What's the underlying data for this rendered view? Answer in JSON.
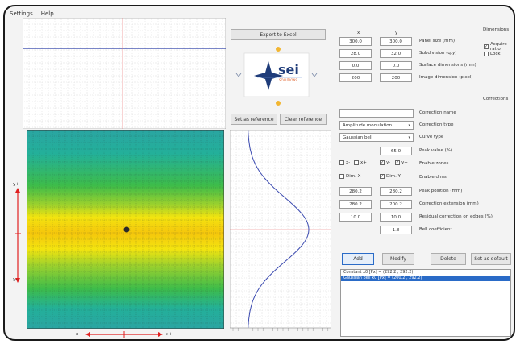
{
  "menu": {
    "settings": "Settings",
    "help": "Help"
  },
  "buttons": {
    "export_to_excel": "Export to Excel",
    "set_as_reference": "Set as reference",
    "clear_reference": "Clear reference",
    "add": "Add",
    "modify": "Modify",
    "delete": "Delete",
    "set_as_default": "Set as default"
  },
  "logo": {
    "text": "sei",
    "subtext": "SOLUTIONS"
  },
  "columns": {
    "x": "x",
    "y": "y"
  },
  "dimensions_section": "Dimensions",
  "corrections_section": "Corrections",
  "dims": [
    {
      "x": "300.0",
      "y": "300.0",
      "label": "Panel size (mm)"
    },
    {
      "x": "28.0",
      "y": "32.0",
      "label": "Subdivision (qty)"
    },
    {
      "x": "0.0",
      "y": "0.0",
      "label": "Surface dimensions (mm)"
    },
    {
      "x": "200",
      "y": "200",
      "label": "Image dimension (pixel)"
    }
  ],
  "checks": {
    "acquire_ratio": "Acquire ratio",
    "lock": "Lock"
  },
  "correction": {
    "name_label": "Correction name",
    "name_value": "",
    "type_label": "Correction type",
    "type_value": "Amplitude modulation",
    "curve_label": "Curve type",
    "curve_value": "Gaussian bell",
    "peak_value": "65.0",
    "peak_label": "Peak value (%)",
    "enable_zones_label": "Enable zones",
    "zone_options": [
      "x-",
      "x+",
      "y-",
      "y+"
    ],
    "enable_dims_label": "Enable dims",
    "dim_x": "Dim. X",
    "dim_y": "Dim. Y",
    "pos_x": "280.2",
    "pos_y": "280.2",
    "pos_label": "Peak position (mm)",
    "ext_x": "280.2",
    "ext_y": "200.2",
    "ext_label": "Correction extension (mm)",
    "residual_x": "10.0",
    "residual_y": "10.0",
    "residual_label": "Residual correction on edges (%)",
    "bell_value": "1.8",
    "bell_label": "Bell coefficient"
  },
  "list": [
    "Constant  x0 [Px] = (292.2 , 292.2)",
    "Gaussian bell  x0 [Px] = (200.2 , 292.2)"
  ],
  "axis_labels": {
    "y_plus": "y+",
    "y_minus": "y-",
    "x_minus": "x-",
    "x_plus": "x+"
  },
  "colors": {
    "accent": "#2a6bc7",
    "selection": "#2a6bc7",
    "marker_red": "#e02020"
  }
}
